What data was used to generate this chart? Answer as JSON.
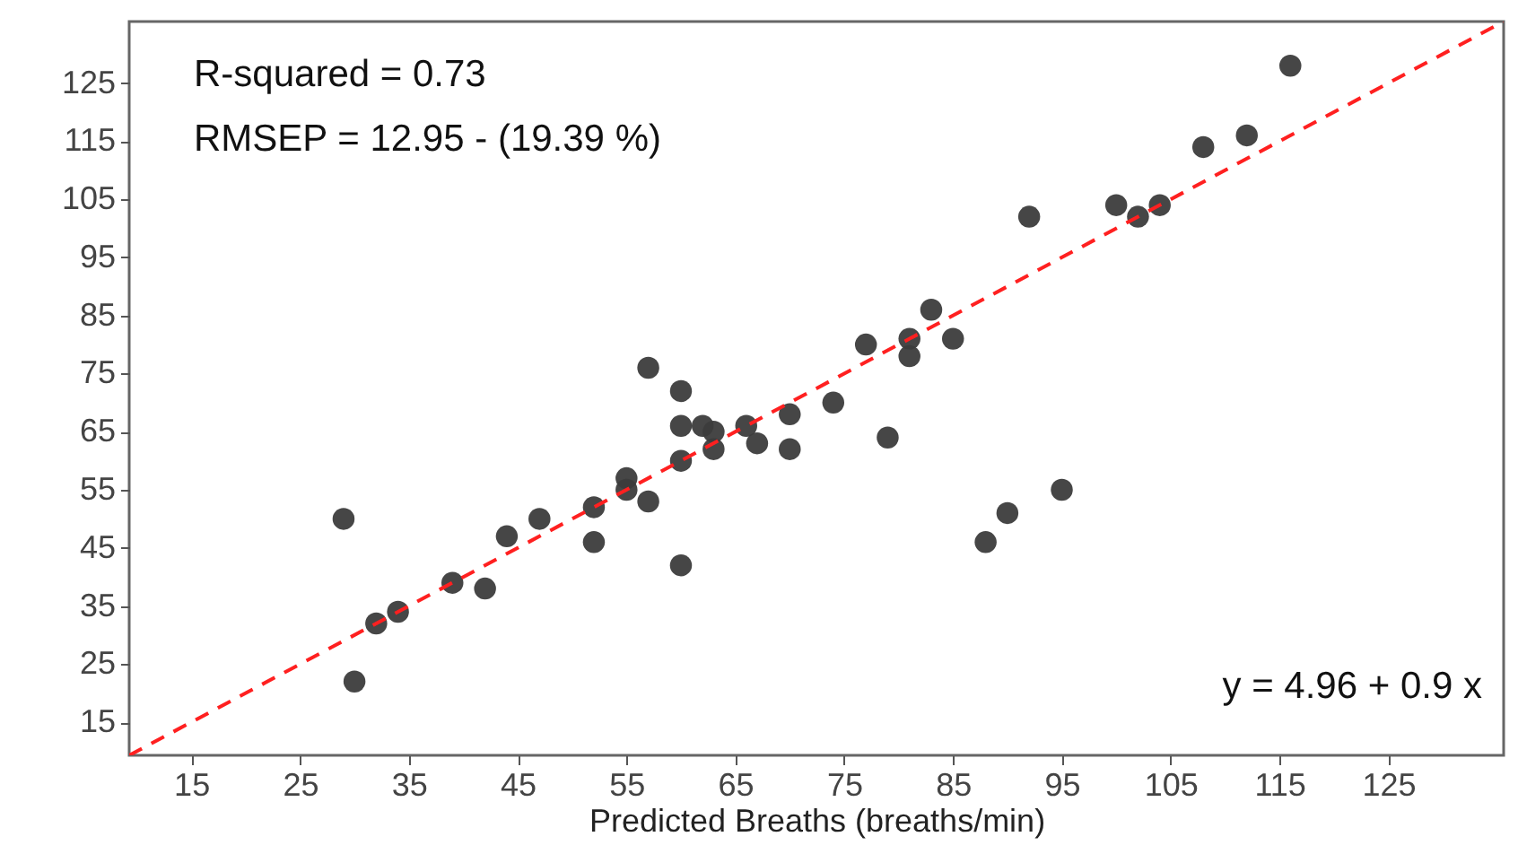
{
  "chart_data": {
    "type": "scatter",
    "xlabel": "Predicted Breaths (breaths/min)",
    "xlim": [
      9.3,
      135.6
    ],
    "ylim": [
      9.3,
      135.6
    ],
    "xticks": [
      15,
      25,
      35,
      45,
      55,
      65,
      75,
      85,
      95,
      105,
      115,
      125
    ],
    "yticks": [
      15,
      25,
      35,
      45,
      55,
      65,
      75,
      85,
      95,
      105,
      115,
      125
    ],
    "grid": false,
    "marker": "circle",
    "annotations": [
      "R-squared = 0.73",
      "RMSEP = 12.95 - (19.39 %)",
      "y = 4.96 + 0.9 x"
    ],
    "series": [
      {
        "color": "#3c3c3c",
        "x": [
          29,
          30,
          32,
          34,
          39,
          42,
          44,
          47,
          52,
          52,
          55,
          55,
          57,
          57,
          60,
          60,
          60,
          60,
          62,
          63,
          63,
          66,
          67,
          70,
          70,
          74,
          77,
          79,
          81,
          81,
          83,
          85,
          88,
          90,
          92,
          95,
          100,
          102,
          104,
          108,
          112,
          116
        ],
        "values": [
          50,
          22,
          32,
          34,
          39,
          38,
          47,
          50,
          52,
          46,
          57,
          55,
          53,
          76,
          72,
          66,
          60,
          42,
          66,
          65,
          62,
          66,
          63,
          68,
          62,
          70,
          80,
          64,
          81,
          78,
          86,
          81,
          46,
          51,
          102,
          55,
          104,
          102,
          104,
          114,
          116,
          128
        ]
      },
      {
        "type": "line",
        "color": "#ff2020",
        "line_style": "dashed",
        "marker": "none",
        "x": [
          9.3,
          135.6
        ],
        "values": [
          9.3,
          135.6
        ]
      }
    ]
  }
}
